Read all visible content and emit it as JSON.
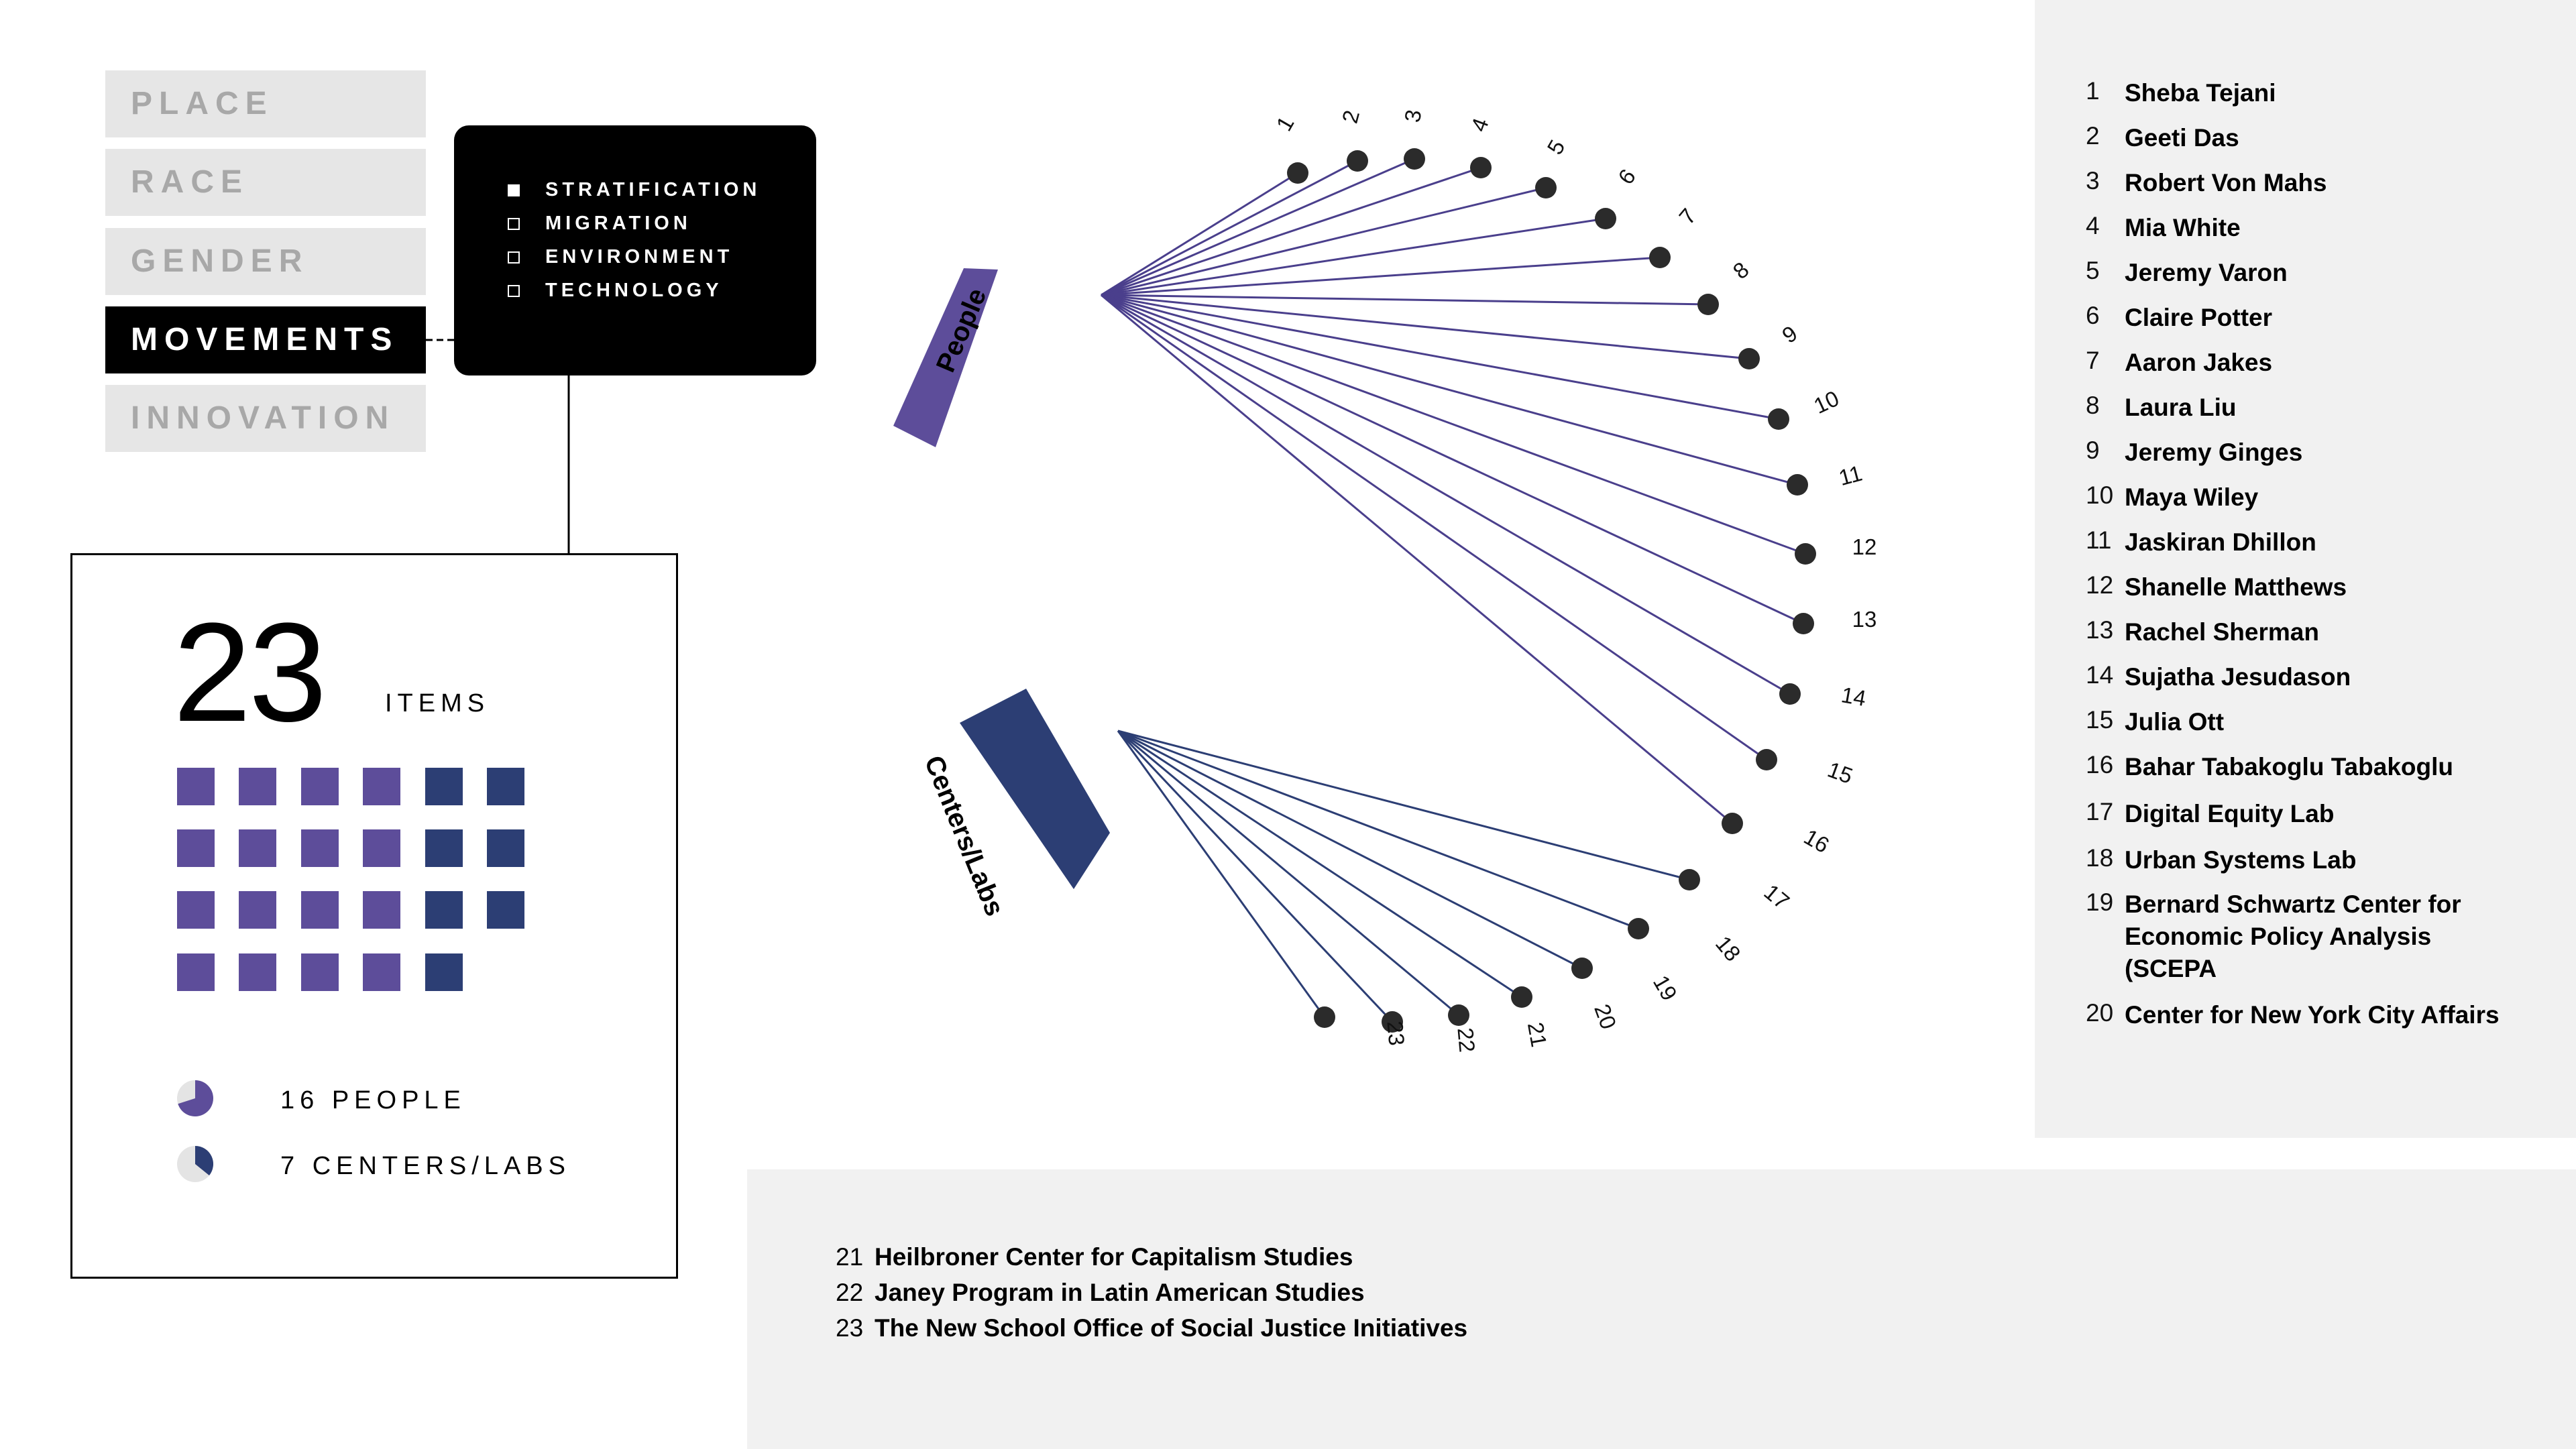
{
  "nav": [
    "PLACE",
    "RACE",
    "GENDER",
    "MOVEMENTS",
    "INNOVATION"
  ],
  "nav_active": "MOVEMENTS",
  "filters": [
    {
      "label": "STRATIFICATION",
      "checked": true
    },
    {
      "label": "MIGRATION",
      "checked": false
    },
    {
      "label": "ENVIRONMENT",
      "checked": false
    },
    {
      "label": "TECHNOLOGY",
      "checked": false
    }
  ],
  "summary": {
    "count": "23",
    "count_label": "ITEMS",
    "people_label": "16 PEOPLE",
    "centers_label": "7 CENTERS/LABS",
    "people_count": 16,
    "centers_count": 7
  },
  "groups": {
    "people": "People",
    "centers": "Centers/Labs"
  },
  "colors": {
    "people": "#5d4d9a",
    "centers": "#2c3e74",
    "node": "#2b2b2b",
    "edge_people": "#4a3f8c",
    "edge_centers": "#2c3e74",
    "panel": "#f1f1f1",
    "nav_inactive": "#e6e6e6"
  },
  "entries": [
    {
      "num": "1",
      "name": "Sheba Tejani"
    },
    {
      "num": "2",
      "name": "Geeti Das"
    },
    {
      "num": "3",
      "name": "Robert Von Mahs"
    },
    {
      "num": "4",
      "name": "Mia White"
    },
    {
      "num": "5",
      "name": "Jeremy Varon"
    },
    {
      "num": "6",
      "name": "Claire Potter"
    },
    {
      "num": "7",
      "name": "Aaron Jakes"
    },
    {
      "num": "8",
      "name": "Laura Liu"
    },
    {
      "num": "9",
      "name": "Jeremy Ginges"
    },
    {
      "num": "10",
      "name": "Maya Wiley"
    },
    {
      "num": "11",
      "name": "Jaskiran Dhillon"
    },
    {
      "num": "12",
      "name": "Shanelle Matthews"
    },
    {
      "num": "13",
      "name": "Rachel Sherman"
    },
    {
      "num": "14",
      "name": "Sujatha Jesudason"
    },
    {
      "num": "15",
      "name": "Julia Ott"
    },
    {
      "num": "16",
      "name": "Bahar Tabakoglu Tabakoglu"
    },
    {
      "num": "17",
      "name": "Digital Equity Lab"
    },
    {
      "num": "18",
      "name": "Urban Systems Lab"
    },
    {
      "num": "19",
      "name": "Bernard Schwartz Center for Economic Policy Analysis (SCEPA"
    },
    {
      "num": "20",
      "name": "Center for New York City Affairs"
    }
  ],
  "bottom_entries": [
    {
      "num": "21",
      "name": "Heilbroner Center for Capitalism Studies"
    },
    {
      "num": "22",
      "name": "Janey Program in Latin American Studies"
    },
    {
      "num": "23",
      "name": "The New School Office of Social Justice Initiatives"
    }
  ]
}
